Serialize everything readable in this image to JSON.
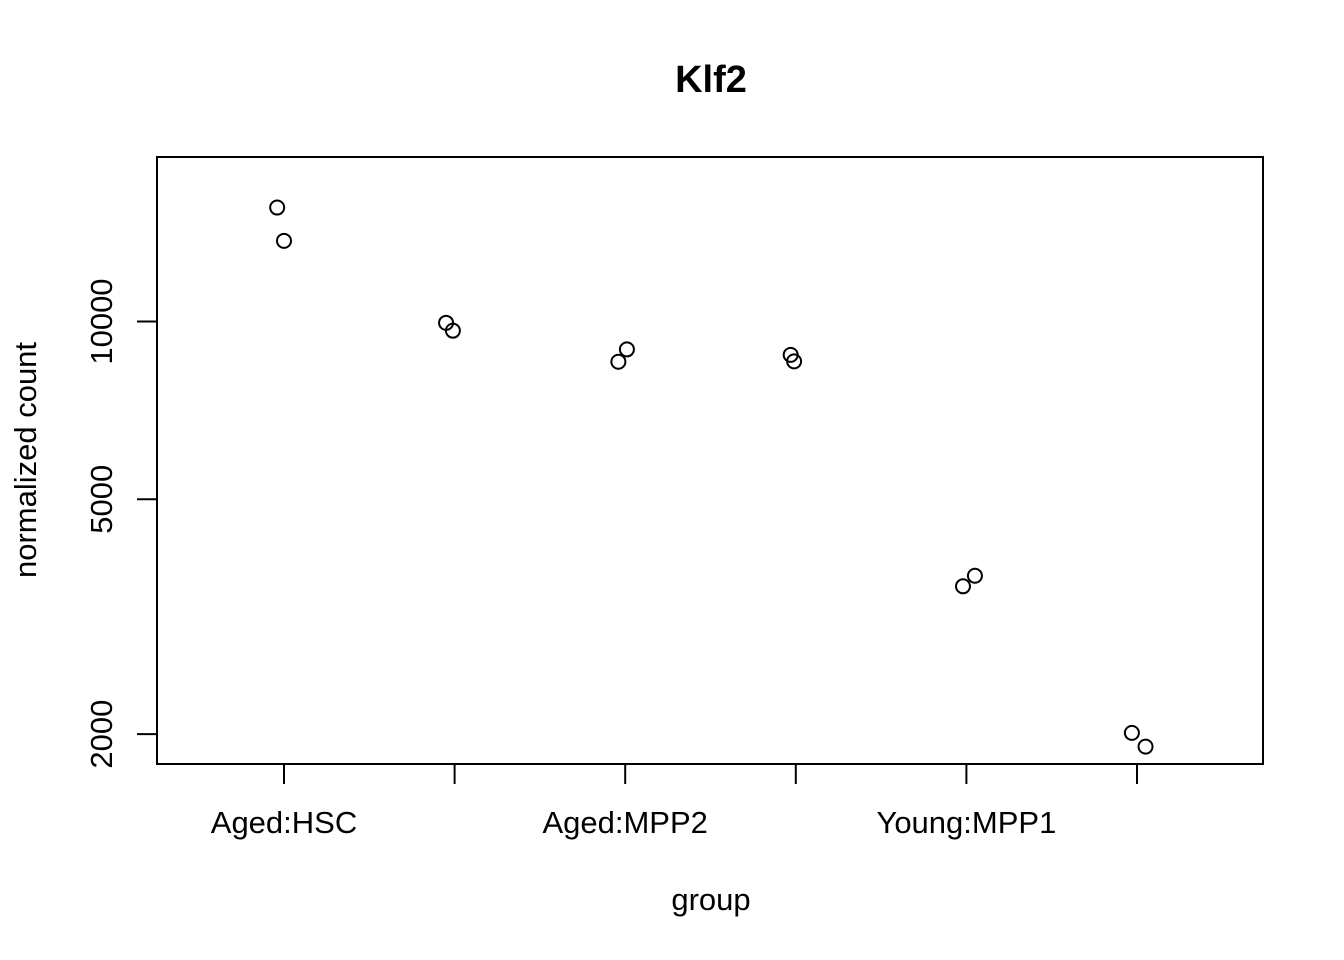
{
  "chart_data": {
    "type": "scatter",
    "title": "Klf2",
    "xlabel": "group",
    "ylabel": "normalized count",
    "y_scale": "log",
    "ylim": [
      1780,
      19000
    ],
    "grid": false,
    "legend": "none",
    "categories": [
      "Aged:HSC",
      "",
      "Aged:MPP2",
      "",
      "Young:MPP1",
      ""
    ],
    "category_tick_labels": [
      "Aged:HSC",
      "",
      "Aged:MPP2",
      "",
      "Young:MPP1",
      ""
    ],
    "y_ticks": [
      2000,
      5000,
      10000
    ],
    "y_tick_labels": [
      "2000",
      "5000",
      "10000"
    ],
    "points": [
      {
        "category_index": 0,
        "jitter": -0.04,
        "y": 15600
      },
      {
        "category_index": 0,
        "jitter": 0.0,
        "y": 13700
      },
      {
        "category_index": 1,
        "jitter": -0.05,
        "y": 9950
      },
      {
        "category_index": 1,
        "jitter": -0.01,
        "y": 9650
      },
      {
        "category_index": 2,
        "jitter": -0.04,
        "y": 8550
      },
      {
        "category_index": 2,
        "jitter": 0.01,
        "y": 8970
      },
      {
        "category_index": 3,
        "jitter": -0.03,
        "y": 8780
      },
      {
        "category_index": 3,
        "jitter": -0.01,
        "y": 8560
      },
      {
        "category_index": 4,
        "jitter": -0.02,
        "y": 3560
      },
      {
        "category_index": 4,
        "jitter": 0.05,
        "y": 3710
      },
      {
        "category_index": 5,
        "jitter": -0.03,
        "y": 2010
      },
      {
        "category_index": 5,
        "jitter": 0.05,
        "y": 1905
      }
    ],
    "marker": "open-circle",
    "colors": {
      "point": "#000000",
      "axis": "#000000",
      "background": "#ffffff"
    }
  }
}
